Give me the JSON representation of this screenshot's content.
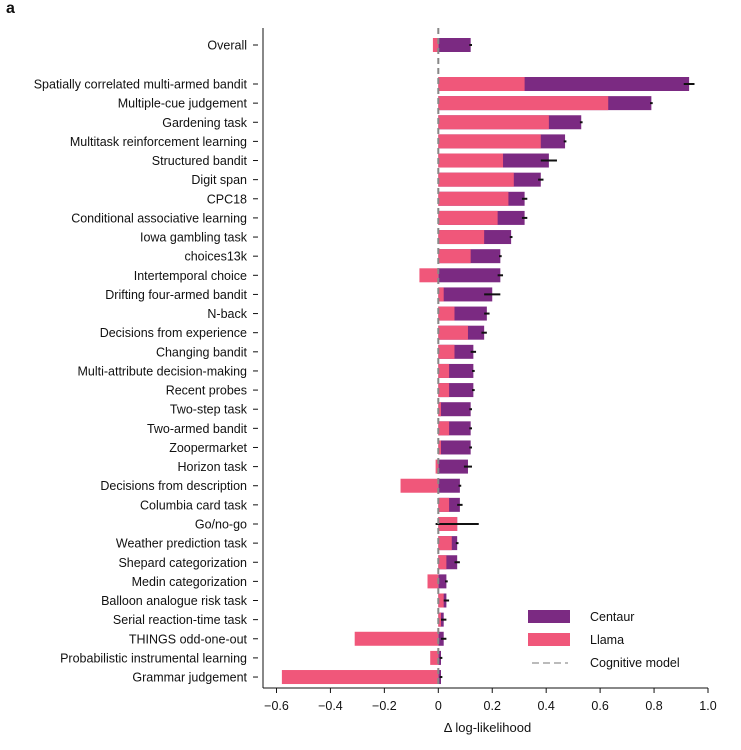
{
  "panel_label": "a",
  "colors": {
    "centaur": "#7b2a82",
    "llama": "#f0577a",
    "cognitive": "#bbbbbb",
    "errorbar": "#111111"
  },
  "chart_data": {
    "type": "bar",
    "orientation": "horizontal",
    "xlabel": "Δ log-likelihood",
    "xlim": [
      -0.65,
      1.0
    ],
    "xticks": [
      -0.6,
      -0.4,
      -0.2,
      0,
      0.2,
      0.4,
      0.6,
      0.8,
      1.0
    ],
    "xtick_labels": [
      "−0.6",
      "−0.4",
      "−0.2",
      "0",
      "0.2",
      "0.4",
      "0.6",
      "0.8",
      "1.0"
    ],
    "legend": {
      "position": "bottom-right",
      "entries": [
        "Centaur",
        "Llama",
        "Cognitive model"
      ]
    },
    "categories": [
      "Overall",
      "Spatially correlated multi-armed bandit",
      "Multiple-cue judgement",
      "Gardening task",
      "Multitask reinforcement learning",
      "Structured bandit",
      "Digit span",
      "CPC18",
      "Conditional associative learning",
      "Iowa gambling task",
      "choices13k",
      "Intertemporal choice",
      "Drifting four-armed bandit",
      "N-back",
      "Decisions from experience",
      "Changing bandit",
      "Multi-attribute decision-making",
      "Recent probes",
      "Two-step task",
      "Two-armed bandit",
      "Zoopermarket",
      "Horizon task",
      "Decisions from description",
      "Columbia card task",
      "Go/no-go",
      "Weather prediction task",
      "Shepard categorization",
      "Medin categorization",
      "Balloon analogue risk task",
      "Serial reaction-time task",
      "THINGS odd-one-out",
      "Probabilistic instrumental learning",
      "Grammar judgement"
    ],
    "series": [
      {
        "name": "Centaur",
        "values": [
          0.12,
          0.93,
          0.79,
          0.53,
          0.47,
          0.41,
          0.38,
          0.32,
          0.32,
          0.27,
          0.23,
          0.23,
          0.2,
          0.18,
          0.17,
          0.13,
          0.13,
          0.13,
          0.12,
          0.12,
          0.12,
          0.11,
          0.08,
          0.08,
          0.07,
          0.07,
          0.07,
          0.03,
          0.03,
          0.02,
          0.02,
          0.01,
          0.01
        ],
        "errors": [
          0.005,
          0.02,
          0.005,
          0.005,
          0.005,
          0.03,
          0.01,
          0.01,
          0.01,
          0.005,
          0.005,
          0.01,
          0.03,
          0.01,
          0.01,
          0.01,
          0.005,
          0.005,
          0.005,
          0.005,
          0.005,
          0.015,
          0.005,
          0.01,
          0.08,
          0.005,
          0.01,
          0.005,
          0.01,
          0.01,
          0.01,
          0.005,
          0.005
        ]
      },
      {
        "name": "Llama",
        "values": [
          -0.02,
          0.32,
          0.63,
          0.41,
          0.38,
          0.24,
          0.28,
          0.26,
          0.22,
          0.17,
          0.12,
          -0.07,
          0.02,
          0.06,
          0.11,
          0.06,
          0.04,
          0.04,
          0.01,
          0.04,
          0.01,
          -0.01,
          -0.14,
          0.04,
          0.07,
          0.05,
          0.03,
          -0.04,
          0.02,
          0.01,
          -0.31,
          -0.03,
          -0.58
        ]
      }
    ]
  }
}
